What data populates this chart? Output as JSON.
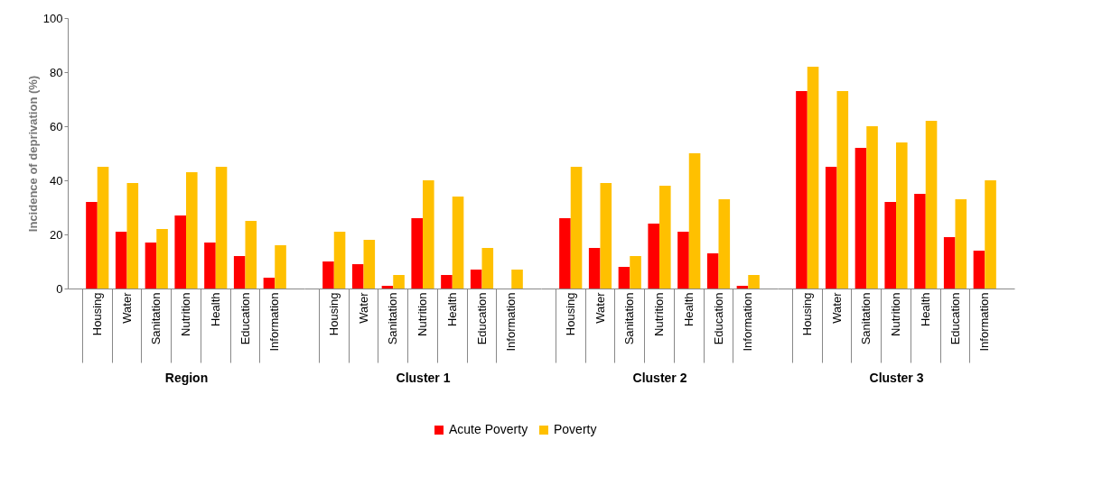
{
  "chart_data": [
    {
      "type": "bar",
      "categories": [
        "Housing",
        "Water",
        "Sanitation",
        "Nutrition",
        "Health",
        "Education",
        "Information"
      ],
      "xlabel": "Region",
      "ylabel": "Incidence of deprivation (%)",
      "ylim": [
        0,
        100
      ],
      "yticks": [
        0,
        20,
        40,
        60,
        80,
        100
      ],
      "grid": false,
      "legend": "bottom",
      "series": [
        {
          "name": "Acute Poverty",
          "color": "#ff0000",
          "values": [
            32,
            21,
            17,
            27,
            17,
            12,
            4
          ]
        },
        {
          "name": "Poverty",
          "color": "#ffc000",
          "values": [
            45,
            39,
            22,
            43,
            45,
            25,
            16
          ]
        }
      ]
    },
    {
      "type": "bar",
      "categories": [
        "Housing",
        "Water",
        "Sanitation",
        "Nutrition",
        "Health",
        "Education",
        "Information"
      ],
      "xlabel": "Cluster 1",
      "ylim": [
        0,
        100
      ],
      "tick_labels": "x",
      "grid": false,
      "legend": "bottom",
      "series": [
        {
          "name": "Acute Poverty",
          "color": "#ff0000",
          "values": [
            10,
            9,
            1,
            26,
            5,
            7,
            0
          ]
        },
        {
          "name": "Poverty",
          "color": "#ffc000",
          "values": [
            21,
            18,
            5,
            40,
            34,
            15,
            7
          ]
        }
      ]
    },
    {
      "type": "bar",
      "categories": [
        "Housing",
        "Water",
        "Sanitation",
        "Nutrition",
        "Health",
        "Education",
        "Information"
      ],
      "xlabel": "Cluster 2",
      "ylim": [
        0,
        100
      ],
      "tick_labels": "x",
      "grid": false,
      "legend": "bottom",
      "series": [
        {
          "name": "Acute Poverty",
          "color": "#ff0000",
          "values": [
            26,
            15,
            8,
            24,
            21,
            13,
            1
          ]
        },
        {
          "name": "Poverty",
          "color": "#ffc000",
          "values": [
            45,
            39,
            12,
            38,
            50,
            33,
            5
          ]
        }
      ]
    },
    {
      "type": "bar",
      "categories": [
        "Housing",
        "Water",
        "Sanitation",
        "Nutrition",
        "Health",
        "Education",
        "Information"
      ],
      "xlabel": "Cluster 3",
      "ylim": [
        0,
        100
      ],
      "tick_labels": "x",
      "grid": false,
      "legend": "bottom",
      "series": [
        {
          "name": "Acute Poverty",
          "color": "#ff0000",
          "values": [
            73,
            45,
            52,
            32,
            35,
            19,
            14
          ]
        },
        {
          "name": "Poverty",
          "color": "#ffc000",
          "values": [
            82,
            73,
            60,
            54,
            62,
            33,
            40
          ]
        }
      ]
    }
  ]
}
